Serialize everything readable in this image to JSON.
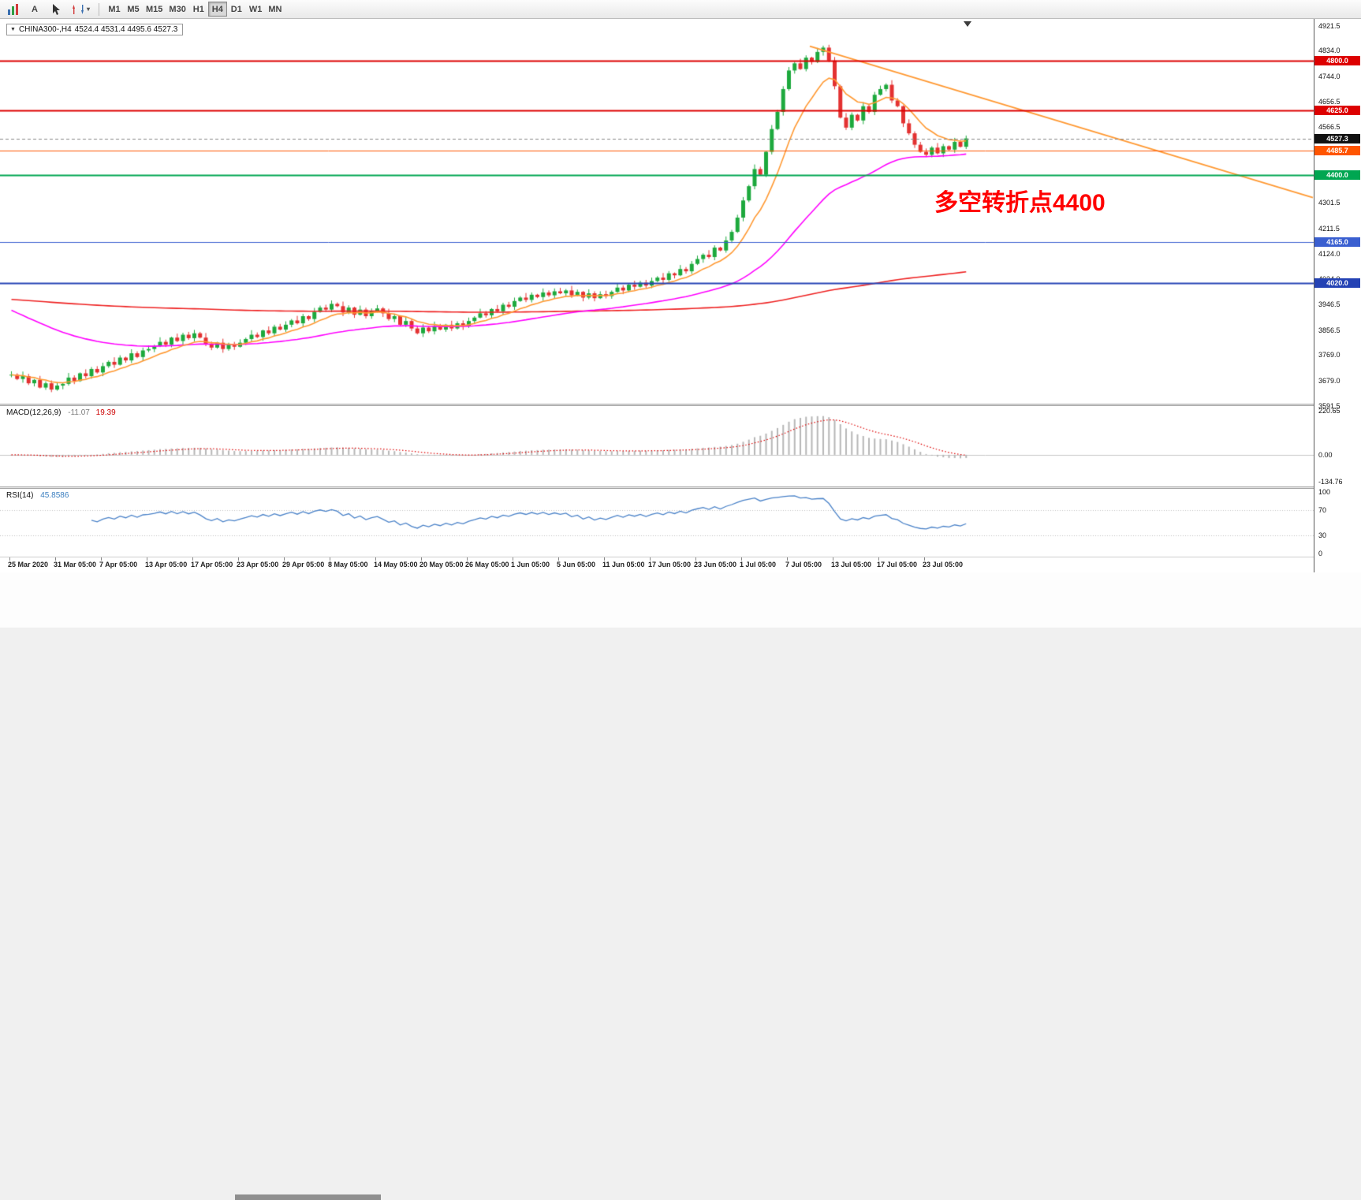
{
  "toolbar": {
    "tools": [
      {
        "label": "A"
      },
      {
        "label": "T"
      }
    ],
    "timeframes": [
      {
        "label": "M1",
        "active": false
      },
      {
        "label": "M5",
        "active": false
      },
      {
        "label": "M15",
        "active": false
      },
      {
        "label": "M30",
        "active": false
      },
      {
        "label": "H1",
        "active": false
      },
      {
        "label": "H4",
        "active": true
      },
      {
        "label": "D1",
        "active": false
      },
      {
        "label": "W1",
        "active": false
      },
      {
        "label": "MN",
        "active": false
      }
    ]
  },
  "symbol_box": {
    "caret": "▼",
    "title": "CHINA300-,H4",
    "ohlc": "4524.4 4531.4 4495.6 4527.3"
  },
  "annotation": {
    "text": "多空转折点4400",
    "color": "#ff0000"
  },
  "chart_data": {
    "type": "candlestick",
    "symbol": "CHINA300-",
    "timeframe": "H4",
    "current_bar_ohlc": [
      4524.4,
      4531.4,
      4495.6,
      4527.3
    ],
    "colors": {
      "up": "#1da93d",
      "down": "#e33131",
      "ma_fast": "#ff9933",
      "ma_medium": "#ff00ff",
      "ma_slow": "#ee2222"
    },
    "closes": [
      3700,
      3685,
      3695,
      3670,
      3682,
      3655,
      3670,
      3648,
      3662,
      3668,
      3690,
      3678,
      3705,
      3695,
      3720,
      3708,
      3730,
      3745,
      3735,
      3760,
      3750,
      3775,
      3762,
      3785,
      3790,
      3800,
      3815,
      3805,
      3830,
      3818,
      3840,
      3828,
      3845,
      3830,
      3808,
      3795,
      3812,
      3790,
      3805,
      3798,
      3812,
      3825,
      3840,
      3832,
      3855,
      3845,
      3868,
      3858,
      3875,
      3890,
      3880,
      3905,
      3895,
      3920,
      3935,
      3928,
      3948,
      3940,
      3918,
      3935,
      3910,
      3928,
      3905,
      3922,
      3932,
      3915,
      3895,
      3905,
      3875,
      3888,
      3862,
      3845,
      3865,
      3852,
      3870,
      3858,
      3875,
      3862,
      3880,
      3870,
      3888,
      3900,
      3915,
      3908,
      3930,
      3922,
      3945,
      3938,
      3958,
      3970,
      3962,
      3980,
      3972,
      3988,
      3978,
      3992,
      3985,
      3995,
      3978,
      3990,
      3970,
      3985,
      3968,
      3982,
      3975,
      3990,
      4005,
      3995,
      4015,
      4008,
      4022,
      4012,
      4028,
      4040,
      4032,
      4055,
      4048,
      4070,
      4062,
      4088,
      4105,
      4120,
      4112,
      4145,
      4135,
      4170,
      4200,
      4250,
      4310,
      4360,
      4420,
      4400,
      4480,
      4560,
      4620,
      4700,
      4765,
      4790,
      4770,
      4810,
      4795,
      4830,
      4845,
      4800,
      4710,
      4600,
      4565,
      4610,
      4590,
      4640,
      4620,
      4680,
      4700,
      4715,
      4660,
      4640,
      4580,
      4545,
      4505,
      4480,
      4470,
      4495,
      4475,
      4500,
      4488,
      4515,
      4498,
      4527.3
    ],
    "wick_up_pattern": [
      12,
      5,
      16,
      8,
      3,
      14,
      7,
      10
    ],
    "wick_down_pattern": [
      9,
      4,
      13,
      6,
      11,
      3,
      8
    ],
    "moving_averages": [
      {
        "name": "fast",
        "color": "#ff9933",
        "period": 10,
        "seed": null
      },
      {
        "name": "medium",
        "color": "#ff00ff",
        "period": 50,
        "seed": 3935
      },
      {
        "name": "slow",
        "color": "#ee2222",
        "period": 400,
        "seed": 3965
      }
    ],
    "trendline": {
      "from_bar": 140,
      "from_price": 4850,
      "to_bar": 228,
      "to_price": 4320,
      "color": "#ff9933"
    },
    "hlines": [
      {
        "price": 4800.0,
        "label": "4800.0",
        "color": "#dd0000",
        "width": 2
      },
      {
        "price": 4625.0,
        "label": "4625.0",
        "color": "#dd0000",
        "width": 2
      },
      {
        "price": 4485.7,
        "label": "4485.7",
        "color": "#ff5500",
        "width": 1
      },
      {
        "price": 4400.0,
        "label": "4400.0",
        "color": "#00a651",
        "width": 2
      },
      {
        "price": 4165.0,
        "label": "4165.0",
        "color": "#3a5fd0",
        "width": 1
      },
      {
        "price": 4020.0,
        "label": "4020.0",
        "color": "#2442b4",
        "width": 2
      }
    ],
    "current_price": {
      "price": 4527.3,
      "label": "4527.3",
      "line_color": "#888888",
      "badge_bg": "#111111"
    },
    "price_axis_ticks": [
      "4921.5",
      "4834.0",
      "4744.0",
      "4656.5",
      "4566.5",
      "4479.0",
      "4391.5",
      "4301.5",
      "4211.5",
      "4124.0",
      "4034.0",
      "3946.5",
      "3856.5",
      "3769.0",
      "3679.0",
      "3591.5"
    ],
    "macd": {
      "label": "MACD(12,26,9)",
      "value_main": "-11.07",
      "value_signal": "19.39",
      "fast": 12,
      "slow": 26,
      "signal": 9,
      "axis_max": 220.65,
      "axis_min": -134.76,
      "axis_ticks": [
        "220.65",
        "0.00",
        "-134.76"
      ],
      "hist_color": "#b6b6b6",
      "signal_color": "#dd0000"
    },
    "rsi": {
      "label": "RSI(14)",
      "value": "45.8586",
      "period": 14,
      "levels": [
        70,
        30
      ],
      "axis_ticks": [
        "100",
        "70",
        "30",
        "0"
      ],
      "color": "#4a82c8"
    },
    "time_axis": [
      "25 Mar 2020",
      "31 Mar 05:00",
      "7 Apr 05:00",
      "13 Apr 05:00",
      "17 Apr 05:00",
      "23 Apr 05:00",
      "29 Apr 05:00",
      "8 May 05:00",
      "14 May 05:00",
      "20 May 05:00",
      "26 May 05:00",
      "1 Jun 05:00",
      "5 Jun 05:00",
      "11 Jun 05:00",
      "17 Jun 05:00",
      "23 Jun 05:00",
      "1 Jul 05:00",
      "7 Jul 05:00",
      "13 Jul 05:00",
      "17 Jul 05:00",
      "23 Jul 05:00"
    ]
  }
}
